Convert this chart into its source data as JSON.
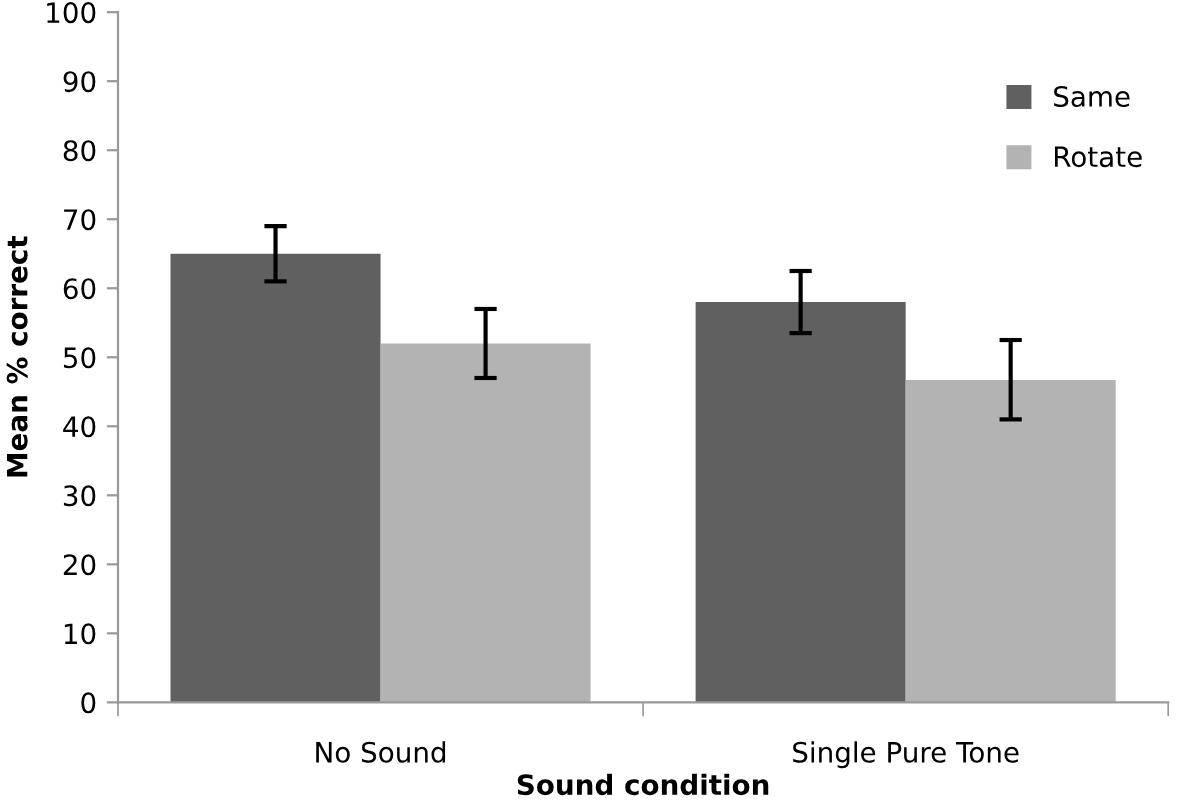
{
  "chart_data": {
    "type": "bar",
    "xlabel": "Sound condition",
    "ylabel": "Mean % correct",
    "categories": [
      "No Sound",
      "Single Pure Tone"
    ],
    "series": [
      {
        "name": "Same",
        "color": "#606060",
        "values": [
          65,
          58
        ],
        "errors": [
          [
            61,
            69
          ],
          [
            53.5,
            62.5
          ]
        ]
      },
      {
        "name": "Rotate",
        "color": "#b3b3b3",
        "values": [
          52,
          46.7
        ],
        "errors": [
          [
            47,
            57
          ],
          [
            41,
            52.5
          ]
        ]
      }
    ],
    "ylim": [
      0,
      100
    ],
    "yticks": [
      0,
      10,
      20,
      30,
      40,
      50,
      60,
      70,
      80,
      90,
      100
    ],
    "grid": false,
    "legend": "top right"
  }
}
